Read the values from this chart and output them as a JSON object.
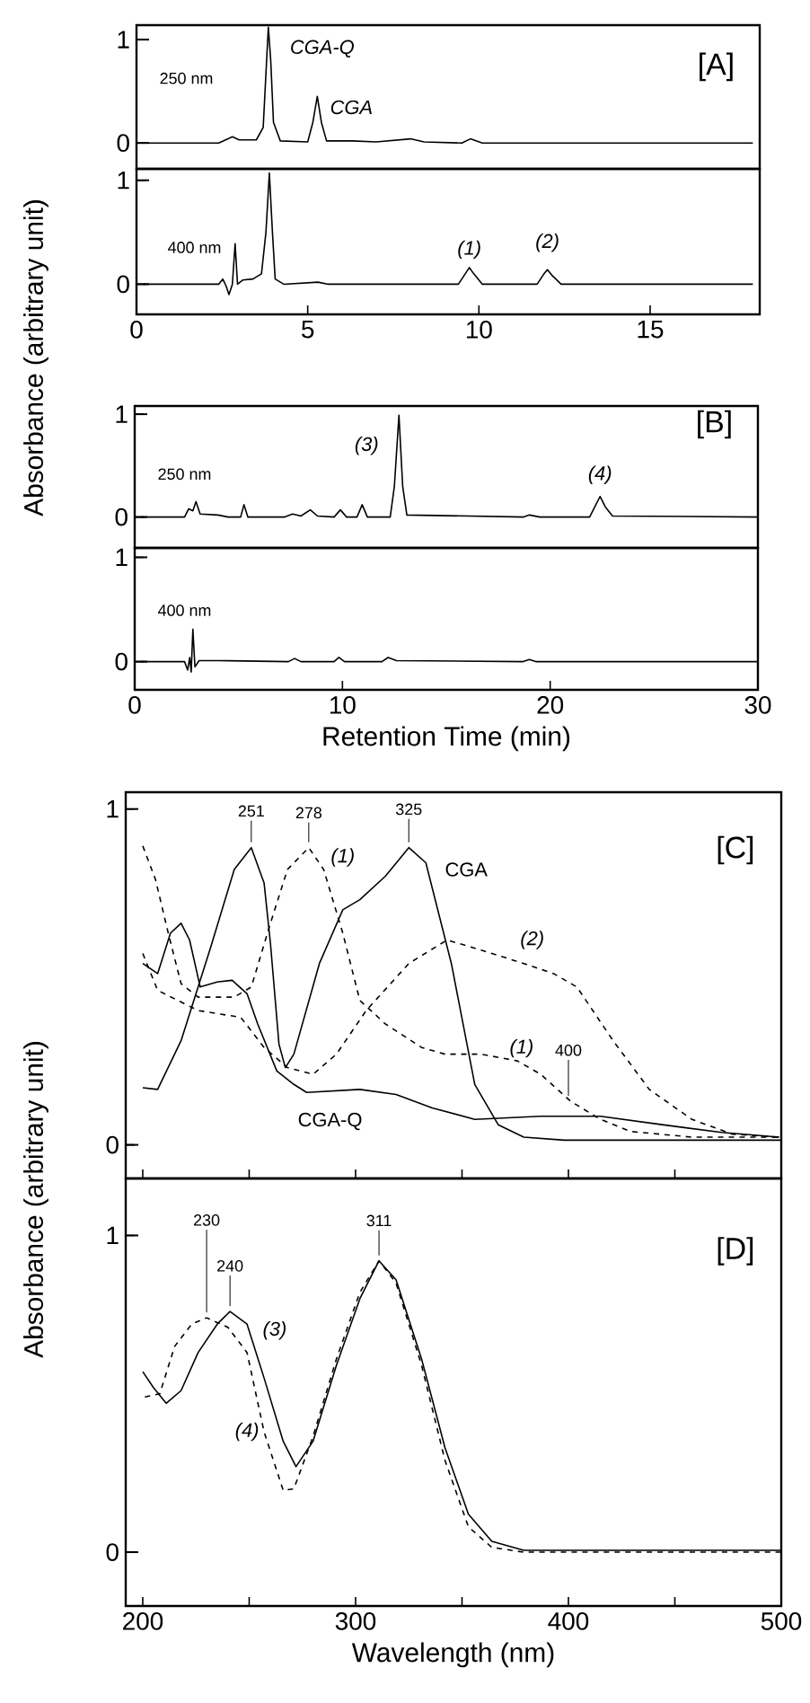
{
  "chart_data": [
    {
      "type": "line",
      "ylabel": "Absorbance (arbitrary unit)",
      "xlim": [
        0,
        18.2
      ],
      "ylim": [
        -0.25,
        1.14
      ],
      "yticks": [
        0,
        1
      ],
      "tick_labels": "y",
      "annotations": [
        "250 nm",
        {
          "text": "CGA-Q",
          "x": 3.85,
          "y": 1.12
        },
        {
          "text": "CGA",
          "x": 5.28,
          "y": 0.45
        },
        "[A]"
      ],
      "series": [
        {
          "color": "#000000",
          "line_style": "solid",
          "x": [
            0.2,
            2.4,
            2.6,
            2.8,
            3.0,
            3.5,
            3.7,
            3.8,
            3.85,
            3.92,
            4.0,
            4.2,
            5.0,
            5.15,
            5.28,
            5.4,
            5.55,
            6.3,
            7.0,
            8.0,
            8.4,
            9.5,
            9.75,
            10.1,
            18.0
          ],
          "values": [
            0,
            0,
            0.03,
            0.06,
            0.03,
            0.03,
            0.15,
            0.8,
            1.12,
            0.8,
            0.2,
            0.02,
            0.01,
            0.2,
            0.45,
            0.2,
            0.02,
            0.02,
            0.01,
            0.04,
            0.01,
            0,
            0.04,
            0,
            0
          ]
        }
      ]
    },
    {
      "type": "line",
      "xlim": [
        0,
        18.2
      ],
      "ylim": [
        -0.29,
        1.11
      ],
      "xticks": [
        0,
        5,
        10,
        15
      ],
      "yticks": [
        0,
        1
      ],
      "annotations": [
        "400 nm",
        {
          "text": "(1)",
          "x": 9.72,
          "y": 0.16
        },
        {
          "text": "(2)",
          "x": 12.0,
          "y": 0.14
        }
      ],
      "series": [
        {
          "color": "#000000",
          "line_style": "solid",
          "x": [
            0.2,
            2.4,
            2.52,
            2.62,
            2.7,
            2.8,
            2.88,
            2.95,
            3.1,
            3.4,
            3.65,
            3.78,
            3.88,
            3.97,
            4.05,
            4.3,
            5.3,
            5.6,
            9.4,
            9.6,
            9.72,
            9.85,
            10.1,
            11.7,
            11.9,
            12.0,
            12.15,
            12.4,
            18.0
          ],
          "values": [
            0,
            0,
            0.05,
            -0.02,
            -0.1,
            0,
            0.39,
            0,
            0.04,
            0.05,
            0.1,
            0.5,
            1.07,
            0.5,
            0.05,
            0,
            0.02,
            0,
            0,
            0.1,
            0.16,
            0.1,
            0,
            0,
            0.1,
            0.14,
            0.08,
            0,
            0
          ]
        }
      ]
    },
    {
      "type": "line",
      "xlim": [
        0,
        30
      ],
      "ylim": [
        -0.3,
        1.08
      ],
      "yticks": [
        0,
        1
      ],
      "tick_labels": "y",
      "annotations": [
        "250 nm",
        {
          "text": "(3)",
          "x": 12.72,
          "y": 0.99
        },
        {
          "text": "(4)",
          "x": 22.4,
          "y": 0.2
        },
        "[B]"
      ],
      "series": [
        {
          "color": "#000000",
          "line_style": "solid",
          "x": [
            0.3,
            2.4,
            2.6,
            2.8,
            2.95,
            3.15,
            4.0,
            4.5,
            5.1,
            5.26,
            5.45,
            7.2,
            7.6,
            8.0,
            8.45,
            8.8,
            9.6,
            9.9,
            10.2,
            10.7,
            10.95,
            11.2,
            12.3,
            12.5,
            12.72,
            12.9,
            13.1,
            18.7,
            19.0,
            19.5,
            21.9,
            22.2,
            22.4,
            22.65,
            23.0,
            30
          ],
          "values": [
            0,
            0,
            0.08,
            0.06,
            0.15,
            0.03,
            0.02,
            0,
            0,
            0.12,
            0,
            0,
            0.03,
            0.01,
            0.07,
            0.01,
            0,
            0.07,
            0,
            0,
            0.12,
            0,
            0,
            0.3,
            0.99,
            0.3,
            0.02,
            0,
            0.02,
            0,
            0,
            0.12,
            0.2,
            0.1,
            0.01,
            0
          ]
        }
      ]
    },
    {
      "type": "line",
      "xlabel": "Retention Time (min)",
      "xlim": [
        0,
        30
      ],
      "ylim": [
        -0.27,
        1.09
      ],
      "xticks": [
        0,
        10,
        20,
        30
      ],
      "yticks": [
        0,
        1
      ],
      "annotations": [
        "400 nm"
      ],
      "series": [
        {
          "color": "#000000",
          "line_style": "solid",
          "x": [
            0.3,
            2.4,
            2.55,
            2.65,
            2.72,
            2.8,
            2.9,
            3.1,
            4.0,
            7.4,
            7.7,
            8.0,
            9.6,
            9.83,
            10.1,
            11.9,
            12.2,
            12.6,
            18.7,
            19.0,
            19.3,
            30
          ],
          "values": [
            0,
            0,
            -0.08,
            0.04,
            -0.1,
            0.31,
            -0.05,
            0.01,
            0.01,
            0,
            0.03,
            0,
            0,
            0.04,
            0,
            0,
            0.04,
            0.01,
            0,
            0.02,
            0,
            0
          ]
        }
      ]
    },
    {
      "type": "line",
      "ylabel": "Absorbance (arbitrary unit)",
      "xlim": [
        192,
        500
      ],
      "ylim": [
        -0.1,
        1.05
      ],
      "xticks": [
        200,
        250,
        300,
        350,
        400,
        450,
        500
      ],
      "yticks": [
        0,
        1
      ],
      "tick_labels": "y",
      "annotations": [
        {
          "text": "251",
          "x": 251,
          "y": 0.885
        },
        {
          "text": "278",
          "x": 278,
          "y": 0.885
        },
        {
          "text": "325",
          "x": 325,
          "y": 0.885
        },
        {
          "text": "(1)",
          "x": 378,
          "y": 0.25
        },
        {
          "text": "400",
          "x": 400,
          "y": 0.13
        },
        "[C]"
      ],
      "series": [
        {
          "name": "CGA",
          "color": "#000000",
          "line_style": "solid",
          "x": [
            200,
            207,
            218,
            232,
            243,
            251,
            257,
            260,
            264,
            267,
            271,
            283,
            294,
            302,
            314,
            325,
            333,
            345,
            356,
            367,
            379,
            398,
            500
          ],
          "values": [
            0.17,
            0.165,
            0.31,
            0.59,
            0.82,
            0.885,
            0.78,
            0.6,
            0.3,
            0.23,
            0.27,
            0.54,
            0.7,
            0.73,
            0.8,
            0.885,
            0.84,
            0.54,
            0.18,
            0.06,
            0.023,
            0.014,
            0.014
          ]
        },
        {
          "name": "CGA-Q",
          "color": "#000000",
          "line_style": "solid",
          "x": [
            200,
            207,
            213,
            218,
            222,
            227,
            235,
            242,
            249,
            254,
            263,
            271,
            277,
            302,
            319,
            336,
            356,
            387,
            415,
            444,
            472,
            499
          ],
          "values": [
            0.54,
            0.51,
            0.63,
            0.66,
            0.61,
            0.47,
            0.485,
            0.49,
            0.45,
            0.36,
            0.22,
            0.18,
            0.156,
            0.165,
            0.15,
            0.11,
            0.076,
            0.085,
            0.085,
            0.06,
            0.037,
            0.023
          ]
        },
        {
          "name": "(1)",
          "color": "#000000",
          "line_style": "dashed",
          "x": [
            200,
            206,
            212,
            218,
            226,
            243,
            251,
            260,
            268,
            278,
            285,
            294,
            302,
            314,
            331,
            342,
            359,
            376,
            387,
            401,
            415,
            429,
            458,
            499
          ],
          "values": [
            0.89,
            0.79,
            0.63,
            0.48,
            0.44,
            0.44,
            0.47,
            0.66,
            0.82,
            0.885,
            0.82,
            0.63,
            0.43,
            0.36,
            0.29,
            0.27,
            0.27,
            0.25,
            0.21,
            0.13,
            0.076,
            0.04,
            0.023,
            0.023
          ]
        },
        {
          "name": "(2)",
          "color": "#000000",
          "line_style": "dashed",
          "x": [
            200,
            207,
            226,
            246,
            257,
            268,
            280,
            291,
            305,
            325,
            343,
            359,
            379,
            393,
            404,
            421,
            438,
            458,
            477,
            499
          ],
          "values": [
            0.57,
            0.46,
            0.4,
            0.38,
            0.29,
            0.23,
            0.21,
            0.27,
            0.4,
            0.54,
            0.61,
            0.58,
            0.54,
            0.51,
            0.47,
            0.31,
            0.165,
            0.076,
            0.032,
            0.023
          ]
        }
      ]
    },
    {
      "type": "line",
      "xlabel": "Wavelength (nm)",
      "xlim": [
        192,
        500
      ],
      "ylim": [
        -0.17,
        1.18
      ],
      "xticks": [
        200,
        {
          "value": 250,
          "label": null
        },
        300,
        {
          "value": 350,
          "label": null
        },
        400,
        {
          "value": 450,
          "label": null
        },
        500
      ],
      "yticks": [
        0,
        1
      ],
      "annotations": [
        {
          "text": "230",
          "x": 230,
          "y": 0.74
        },
        {
          "text": "240",
          "x": 241,
          "y": 0.76
        },
        {
          "text": "311",
          "x": 311,
          "y": 0.92
        },
        "[D]"
      ],
      "series": [
        {
          "name": "(3)",
          "color": "#000000",
          "line_style": "solid",
          "x": [
            200,
            205,
            211,
            218,
            226,
            235,
            241,
            249,
            257,
            266,
            272,
            280,
            291,
            302,
            311,
            319,
            331,
            342,
            353,
            364,
            379,
            500
          ],
          "values": [
            0.57,
            0.52,
            0.47,
            0.51,
            0.63,
            0.72,
            0.76,
            0.72,
            0.55,
            0.35,
            0.27,
            0.35,
            0.59,
            0.8,
            0.92,
            0.86,
            0.61,
            0.33,
            0.12,
            0.034,
            0.006,
            0.006
          ]
        },
        {
          "name": "(4)",
          "color": "#000000",
          "line_style": "dashed",
          "x": [
            201,
            208,
            215,
            223,
            230,
            240,
            249,
            257,
            266,
            271,
            280,
            291,
            302,
            311,
            319,
            331,
            342,
            353,
            364,
            379,
            500
          ],
          "values": [
            0.49,
            0.5,
            0.65,
            0.72,
            0.74,
            0.71,
            0.63,
            0.38,
            0.195,
            0.2,
            0.365,
            0.61,
            0.82,
            0.92,
            0.85,
            0.59,
            0.29,
            0.08,
            0.015,
            0,
            0
          ]
        }
      ]
    }
  ]
}
